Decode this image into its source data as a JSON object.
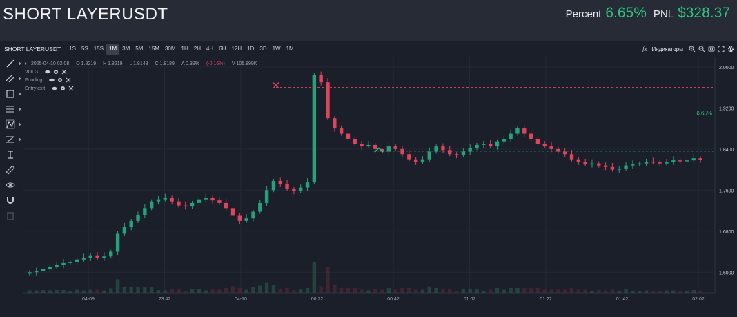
{
  "header": {
    "title": "SHORT LAYERUSDT",
    "percent_label": "Percent",
    "percent_value": "6.65%",
    "pnl_label": "PNL",
    "pnl_value": "$328.37"
  },
  "toolbar": {
    "symbol": "SHORT LAYERUSDT",
    "timeframes": [
      "1S",
      "5S",
      "15S",
      "1M",
      "3M",
      "5M",
      "15M",
      "30M",
      "1H",
      "2H",
      "4H",
      "6H",
      "12H",
      "1D",
      "3D",
      "1W",
      "1M"
    ],
    "active_timeframe": "1M",
    "indicators_label": "Индикаторы"
  },
  "legend": {
    "date": "2025-04-10 02:08",
    "open": "O 1.8219",
    "high": "H 1.8219",
    "low": "L 1.8148",
    "close": "C 1.8189",
    "amplitude": "A 0.39%",
    "change": "(-0.16%)",
    "volume": "V 105.899K",
    "indicators": [
      "VOLG",
      "Funding",
      "Entry exit"
    ]
  },
  "colors": {
    "up": "#26a17b",
    "down": "#e0445d",
    "entry_line": "#e0445d",
    "current_line": "#2ec27e",
    "accent_green": "#2ec27e"
  },
  "left_tools": [
    "trend-line-icon",
    "parallel-lines-icon",
    "rectangle-icon",
    "fib-icon",
    "pattern-icon",
    "gann-icon",
    "text-cursor-icon",
    "ruler-icon",
    "eye-icon",
    "magnet-icon",
    "trash-icon"
  ],
  "chart_data": {
    "type": "candlestick",
    "title": "",
    "y_ticks": [
      "2.0000",
      "1.9200",
      "1.8400",
      "1.7600",
      "1.6800",
      "1.6000"
    ],
    "ylim": [
      1.56,
      2.02
    ],
    "x_ticks": [
      "04-09",
      "23:42",
      "04-10",
      "00:22",
      "00:42",
      "01:02",
      "01:22",
      "01:42",
      "02:02"
    ],
    "entry_price": 1.96,
    "current_price": 1.836,
    "pnl_percent_label": "6.65%",
    "approx_close_series": [
      1.6,
      1.603,
      1.607,
      1.61,
      1.614,
      1.618,
      1.62,
      1.625,
      1.628,
      1.633,
      1.628,
      1.631,
      1.64,
      1.675,
      1.688,
      1.7,
      1.712,
      1.725,
      1.738,
      1.742,
      1.745,
      1.738,
      1.73,
      1.728,
      1.735,
      1.742,
      1.745,
      1.74,
      1.735,
      1.725,
      1.71,
      1.7,
      1.705,
      1.718,
      1.735,
      1.76,
      1.778,
      1.772,
      1.762,
      1.758,
      1.765,
      1.775,
      1.985,
      1.97,
      1.9,
      1.88,
      1.87,
      1.86,
      1.85,
      1.845,
      1.848,
      1.84,
      1.835,
      1.845,
      1.84,
      1.83,
      1.82,
      1.815,
      1.82,
      1.835,
      1.845,
      1.838,
      1.83,
      1.828,
      1.835,
      1.842,
      1.848,
      1.85,
      1.845,
      1.855,
      1.86,
      1.87,
      1.88,
      1.87,
      1.86,
      1.85,
      1.845,
      1.84,
      1.835,
      1.83,
      1.82,
      1.815,
      1.81,
      1.812,
      1.808,
      1.805,
      1.8,
      1.802,
      1.808,
      1.81,
      1.812,
      1.815,
      1.814,
      1.812,
      1.815,
      1.818,
      1.816,
      1.818,
      1.822,
      1.819
    ]
  }
}
